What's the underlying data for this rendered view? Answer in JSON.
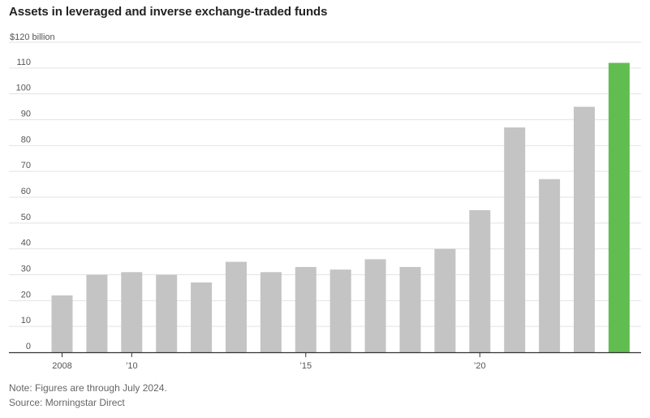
{
  "chart_data": {
    "type": "bar",
    "title": "Assets in leveraged and inverse exchange-traded funds",
    "y_unit_label": "$120 billion",
    "ylim": [
      0,
      120
    ],
    "yticks": [
      0,
      10,
      20,
      30,
      40,
      50,
      60,
      70,
      80,
      90,
      100,
      110
    ],
    "categories": [
      "2008",
      "2009",
      "2010",
      "2011",
      "2012",
      "2013",
      "2014",
      "2015",
      "2016",
      "2017",
      "2018",
      "2019",
      "2020",
      "2021",
      "2022",
      "2023",
      "2024"
    ],
    "x_tick_labels": [
      {
        "category": "2008",
        "label": "2008"
      },
      {
        "category": "2010",
        "label": "’10"
      },
      {
        "category": "2015",
        "label": "’15"
      },
      {
        "category": "2020",
        "label": "’20"
      }
    ],
    "values": [
      22,
      30,
      31,
      30,
      27,
      35,
      31,
      33,
      32,
      36,
      33,
      40,
      55,
      87,
      67,
      95,
      112
    ],
    "highlight_category": "2024",
    "colors": {
      "bar": "#c4c4c4",
      "highlight": "#62bd51",
      "grid": "#e3e3e3",
      "axis": "#333333"
    },
    "grid": true
  },
  "notes": {
    "note": "Note: Figures are through July 2024.",
    "source": "Source: Morningstar Direct"
  }
}
